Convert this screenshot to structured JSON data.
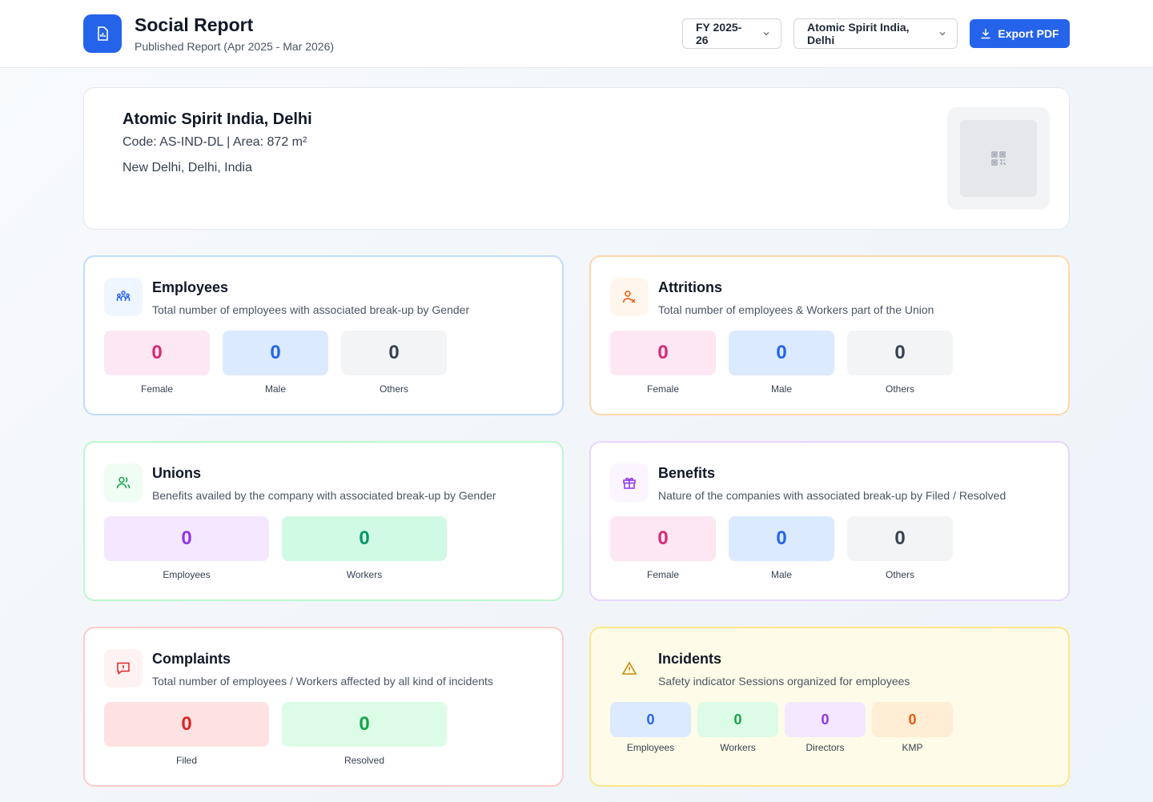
{
  "header": {
    "title": "Social Report",
    "subtitle": "Published Report (Apr 2025 - Mar 2026)",
    "fy_select": "FY 2025-26",
    "site_select": "Atomic Spirit India, Delhi",
    "export_label": "Export PDF"
  },
  "site": {
    "name": "Atomic Spirit India, Delhi",
    "code_line": "Code: AS-IND-DL | Area: 872 m²",
    "address": "New Delhi, Delhi, India"
  },
  "cards": {
    "employees": {
      "title": "Employees",
      "description": "Total number of employees with associated break-up by Gender",
      "stats": [
        {
          "value": "0",
          "label": "Female"
        },
        {
          "value": "0",
          "label": "Male"
        },
        {
          "value": "0",
          "label": "Others"
        }
      ]
    },
    "attritions": {
      "title": "Attritions",
      "description": "Total number of employees & Workers part of the Union",
      "stats": [
        {
          "value": "0",
          "label": "Female"
        },
        {
          "value": "0",
          "label": "Male"
        },
        {
          "value": "0",
          "label": "Others"
        }
      ]
    },
    "unions": {
      "title": "Unions",
      "description": "Benefits availed by the company with associated break-up by Gender",
      "stats": [
        {
          "value": "0",
          "label": "Employees"
        },
        {
          "value": "0",
          "label": "Workers"
        }
      ]
    },
    "benefits": {
      "title": "Benefits",
      "description": "Nature of the companies with associated break-up by Filed / Resolved",
      "stats": [
        {
          "value": "0",
          "label": "Female"
        },
        {
          "value": "0",
          "label": "Male"
        },
        {
          "value": "0",
          "label": "Others"
        }
      ]
    },
    "complaints": {
      "title": "Complaints",
      "description": "Total number of employees / Workers affected by all kind of incidents",
      "stats": [
        {
          "value": "0",
          "label": "Filed"
        },
        {
          "value": "0",
          "label": "Resolved"
        }
      ]
    },
    "incidents": {
      "title": "Incidents",
      "description": "Safety indicator Sessions organized for employees",
      "stats": [
        {
          "value": "0",
          "label": "Employees"
        },
        {
          "value": "0",
          "label": "Workers"
        },
        {
          "value": "0",
          "label": "Directors"
        },
        {
          "value": "0",
          "label": "KMP"
        }
      ]
    }
  },
  "colors": {
    "primary": "#2563eb",
    "female": "#db2777",
    "male": "#2563eb",
    "others": "#374151"
  }
}
